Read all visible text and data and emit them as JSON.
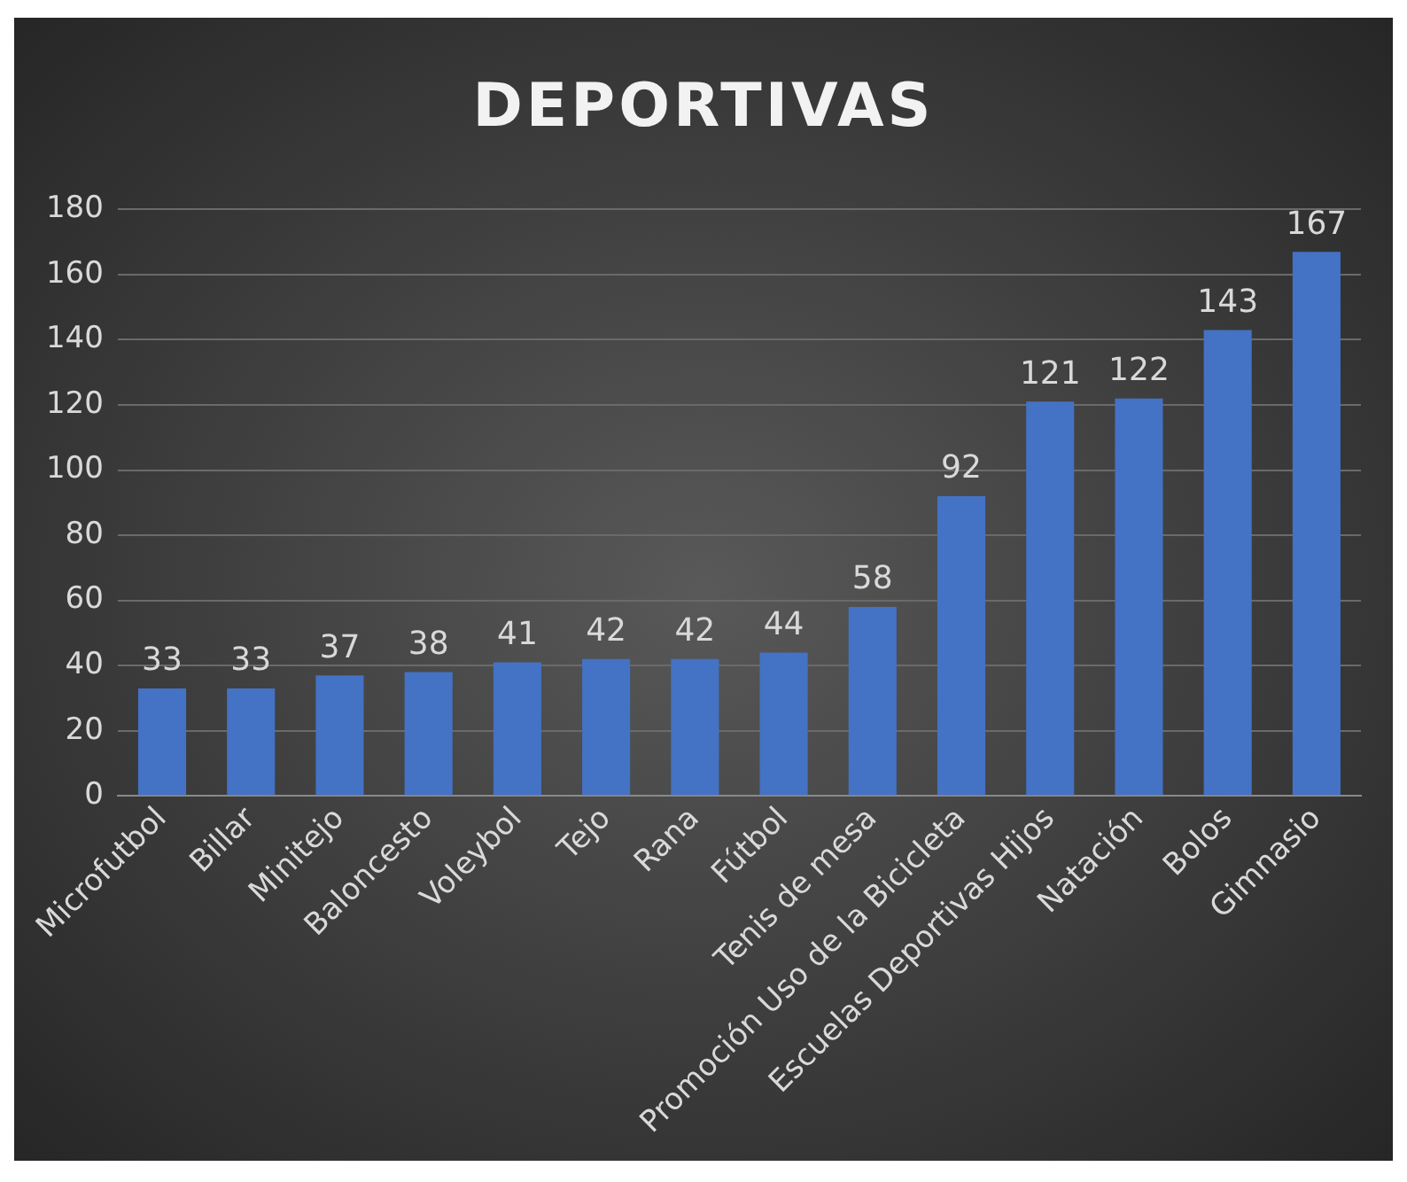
{
  "chart_data": {
    "type": "bar",
    "title": "DEPORTIVAS",
    "categories": [
      "Microfutbol",
      "Billar",
      "Minitejo",
      "Baloncesto",
      "Voleybol",
      "Tejo",
      "Rana",
      "Fútbol",
      "Tenis de mesa",
      "Promoción Uso de la Bicicleta",
      "Escuelas Deportivas Hijos",
      "Natación",
      "Bolos",
      "Gimnasio"
    ],
    "values": [
      33,
      33,
      37,
      38,
      41,
      42,
      42,
      44,
      58,
      92,
      121,
      122,
      143,
      167
    ],
    "color": "#4472c4",
    "ylim": [
      0,
      180
    ],
    "yticks": [
      0,
      20,
      40,
      60,
      80,
      100,
      120,
      140,
      160,
      180
    ],
    "grid": "y",
    "data_labels": true,
    "legend": false
  }
}
